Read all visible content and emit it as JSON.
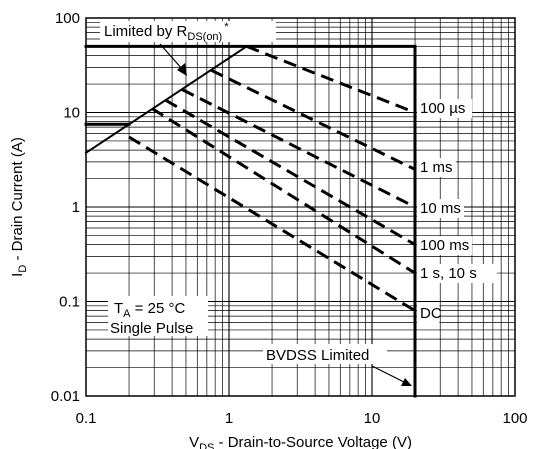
{
  "chart_data": {
    "type": "line",
    "x_scale": "log",
    "y_scale": "log",
    "xlim": [
      0.1,
      100
    ],
    "ylim": [
      0.01,
      100
    ],
    "grid": true,
    "x_ticks": [
      "0.1",
      "1",
      "10",
      "100"
    ],
    "y_ticks": [
      "100",
      "10",
      "1",
      "0.1",
      "0.01"
    ],
    "xlabel": {
      "main": "V",
      "sub": "DS",
      "rest": " - Drain-to-Source Voltage (V)"
    },
    "ylabel": {
      "main": "I",
      "sub": "D",
      "rest": " - Drain Current (A)"
    },
    "boundary": [
      {
        "x": 0.1,
        "y": 7.5
      },
      {
        "x": 0.2,
        "y": 7.5
      }
    ],
    "package_limit": [
      {
        "x": 0.1,
        "y": 50
      },
      {
        "x": 20,
        "y": 50
      }
    ],
    "bvdss_limit": [
      {
        "x": 20,
        "y": 50
      },
      {
        "x": 20,
        "y": 0.01
      }
    ],
    "rds_on_limit": [
      {
        "x": 0.1,
        "y": 3.75
      },
      {
        "x": 1.33,
        "y": 50
      }
    ],
    "series": [
      {
        "name": "100 µs",
        "points": [
          {
            "x": 1.33,
            "y": 50
          },
          {
            "x": 20,
            "y": 10
          }
        ]
      },
      {
        "name": "1 ms",
        "points": [
          {
            "x": 0.75,
            "y": 28
          },
          {
            "x": 20,
            "y": 2.5
          }
        ]
      },
      {
        "name": "10 ms",
        "points": [
          {
            "x": 0.47,
            "y": 17.5
          },
          {
            "x": 20,
            "y": 1.0
          }
        ]
      },
      {
        "name": "100 ms",
        "points": [
          {
            "x": 0.36,
            "y": 13.5
          },
          {
            "x": 20,
            "y": 0.4
          }
        ]
      },
      {
        "name": "1 s, 10 s",
        "points": [
          {
            "x": 0.29,
            "y": 11
          },
          {
            "x": 20,
            "y": 0.2
          }
        ]
      },
      {
        "name": "DC",
        "points": [
          {
            "x": 0.2,
            "y": 5.5
          },
          {
            "x": 20,
            "y": 0.08
          }
        ]
      }
    ],
    "annotations": {
      "rds_label_main": "Limited by R",
      "rds_label_sub": "DS(on)",
      "rds_label_sup": "*",
      "ta_main": "T",
      "ta_sub": "A",
      "ta_rest": " = 25 °C",
      "pulse": "Single Pulse",
      "bvdss": "BVDSS Limited"
    }
  }
}
